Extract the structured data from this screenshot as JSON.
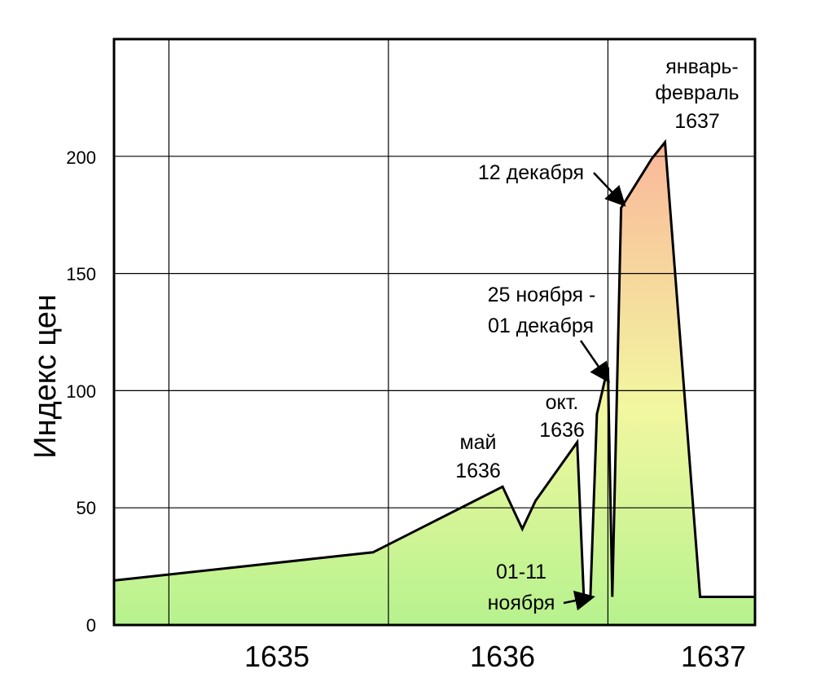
{
  "chart_data": {
    "type": "area",
    "title": "",
    "xlabel": "",
    "ylabel": "Индекс цен",
    "ylim": [
      0,
      250
    ],
    "y_ticks": [
      0,
      50,
      100,
      150,
      200
    ],
    "x_ticks": [
      "1635",
      "1636",
      "1637"
    ],
    "grid": true,
    "series": [
      {
        "x": [
          1634.25,
          1635.43,
          1636.02,
          1636.11,
          1636.17,
          1636.36,
          1636.39,
          1636.42,
          1636.45,
          1636.5,
          1636.52,
          1636.56,
          1636.7,
          1636.76,
          1636.92,
          1637.17
        ],
        "y": [
          19,
          31,
          59,
          41,
          53,
          78,
          12,
          12,
          90,
          110,
          12,
          178,
          199,
          206,
          12,
          12
        ]
      }
    ],
    "annotations": [
      {
        "lines": [
          "январь-",
          "февраль",
          "1637"
        ]
      },
      {
        "lines": [
          "12 декабря"
        ]
      },
      {
        "lines": [
          "25 ноября -",
          "01 декабря"
        ]
      },
      {
        "lines": [
          "окт.",
          "1636"
        ]
      },
      {
        "lines": [
          "май",
          "1636"
        ]
      },
      {
        "lines": [
          "01-11",
          "ноября"
        ]
      }
    ],
    "colors": {
      "fill_low": "#b6f28e",
      "fill_mid": "#f2f7a0",
      "fill_high": "#fab79a",
      "line": "#000000",
      "grid": "#000000"
    }
  }
}
